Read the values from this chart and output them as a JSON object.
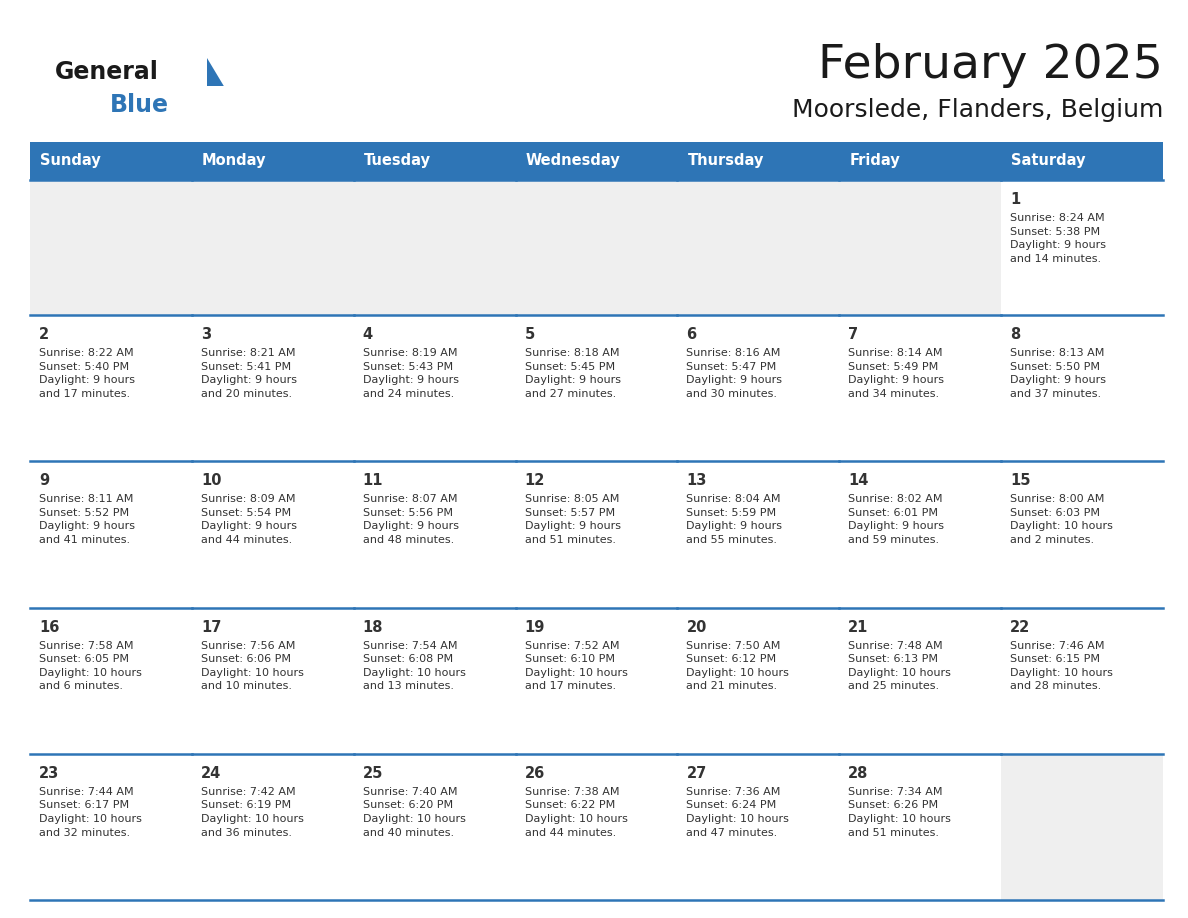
{
  "title": "February 2025",
  "subtitle": "Moorslede, Flanders, Belgium",
  "header_color": "#2E75B6",
  "header_text_color": "#FFFFFF",
  "line_color": "#2E75B6",
  "day_headers": [
    "Sunday",
    "Monday",
    "Tuesday",
    "Wednesday",
    "Thursday",
    "Friday",
    "Saturday"
  ],
  "title_color": "#1A1A1A",
  "blue_color": "#2E75B6",
  "text_color": "#333333",
  "empty_cell_color": "#EFEFEF",
  "filled_cell_color": "#FFFFFF",
  "calendar": [
    [
      {
        "day": null,
        "text": ""
      },
      {
        "day": null,
        "text": ""
      },
      {
        "day": null,
        "text": ""
      },
      {
        "day": null,
        "text": ""
      },
      {
        "day": null,
        "text": ""
      },
      {
        "day": null,
        "text": ""
      },
      {
        "day": 1,
        "text": "Sunrise: 8:24 AM\nSunset: 5:38 PM\nDaylight: 9 hours\nand 14 minutes."
      }
    ],
    [
      {
        "day": 2,
        "text": "Sunrise: 8:22 AM\nSunset: 5:40 PM\nDaylight: 9 hours\nand 17 minutes."
      },
      {
        "day": 3,
        "text": "Sunrise: 8:21 AM\nSunset: 5:41 PM\nDaylight: 9 hours\nand 20 minutes."
      },
      {
        "day": 4,
        "text": "Sunrise: 8:19 AM\nSunset: 5:43 PM\nDaylight: 9 hours\nand 24 minutes."
      },
      {
        "day": 5,
        "text": "Sunrise: 8:18 AM\nSunset: 5:45 PM\nDaylight: 9 hours\nand 27 minutes."
      },
      {
        "day": 6,
        "text": "Sunrise: 8:16 AM\nSunset: 5:47 PM\nDaylight: 9 hours\nand 30 minutes."
      },
      {
        "day": 7,
        "text": "Sunrise: 8:14 AM\nSunset: 5:49 PM\nDaylight: 9 hours\nand 34 minutes."
      },
      {
        "day": 8,
        "text": "Sunrise: 8:13 AM\nSunset: 5:50 PM\nDaylight: 9 hours\nand 37 minutes."
      }
    ],
    [
      {
        "day": 9,
        "text": "Sunrise: 8:11 AM\nSunset: 5:52 PM\nDaylight: 9 hours\nand 41 minutes."
      },
      {
        "day": 10,
        "text": "Sunrise: 8:09 AM\nSunset: 5:54 PM\nDaylight: 9 hours\nand 44 minutes."
      },
      {
        "day": 11,
        "text": "Sunrise: 8:07 AM\nSunset: 5:56 PM\nDaylight: 9 hours\nand 48 minutes."
      },
      {
        "day": 12,
        "text": "Sunrise: 8:05 AM\nSunset: 5:57 PM\nDaylight: 9 hours\nand 51 minutes."
      },
      {
        "day": 13,
        "text": "Sunrise: 8:04 AM\nSunset: 5:59 PM\nDaylight: 9 hours\nand 55 minutes."
      },
      {
        "day": 14,
        "text": "Sunrise: 8:02 AM\nSunset: 6:01 PM\nDaylight: 9 hours\nand 59 minutes."
      },
      {
        "day": 15,
        "text": "Sunrise: 8:00 AM\nSunset: 6:03 PM\nDaylight: 10 hours\nand 2 minutes."
      }
    ],
    [
      {
        "day": 16,
        "text": "Sunrise: 7:58 AM\nSunset: 6:05 PM\nDaylight: 10 hours\nand 6 minutes."
      },
      {
        "day": 17,
        "text": "Sunrise: 7:56 AM\nSunset: 6:06 PM\nDaylight: 10 hours\nand 10 minutes."
      },
      {
        "day": 18,
        "text": "Sunrise: 7:54 AM\nSunset: 6:08 PM\nDaylight: 10 hours\nand 13 minutes."
      },
      {
        "day": 19,
        "text": "Sunrise: 7:52 AM\nSunset: 6:10 PM\nDaylight: 10 hours\nand 17 minutes."
      },
      {
        "day": 20,
        "text": "Sunrise: 7:50 AM\nSunset: 6:12 PM\nDaylight: 10 hours\nand 21 minutes."
      },
      {
        "day": 21,
        "text": "Sunrise: 7:48 AM\nSunset: 6:13 PM\nDaylight: 10 hours\nand 25 minutes."
      },
      {
        "day": 22,
        "text": "Sunrise: 7:46 AM\nSunset: 6:15 PM\nDaylight: 10 hours\nand 28 minutes."
      }
    ],
    [
      {
        "day": 23,
        "text": "Sunrise: 7:44 AM\nSunset: 6:17 PM\nDaylight: 10 hours\nand 32 minutes."
      },
      {
        "day": 24,
        "text": "Sunrise: 7:42 AM\nSunset: 6:19 PM\nDaylight: 10 hours\nand 36 minutes."
      },
      {
        "day": 25,
        "text": "Sunrise: 7:40 AM\nSunset: 6:20 PM\nDaylight: 10 hours\nand 40 minutes."
      },
      {
        "day": 26,
        "text": "Sunrise: 7:38 AM\nSunset: 6:22 PM\nDaylight: 10 hours\nand 44 minutes."
      },
      {
        "day": 27,
        "text": "Sunrise: 7:36 AM\nSunset: 6:24 PM\nDaylight: 10 hours\nand 47 minutes."
      },
      {
        "day": 28,
        "text": "Sunrise: 7:34 AM\nSunset: 6:26 PM\nDaylight: 10 hours\nand 51 minutes."
      },
      {
        "day": null,
        "text": ""
      }
    ]
  ],
  "fig_width": 11.88,
  "fig_height": 9.18,
  "dpi": 100
}
